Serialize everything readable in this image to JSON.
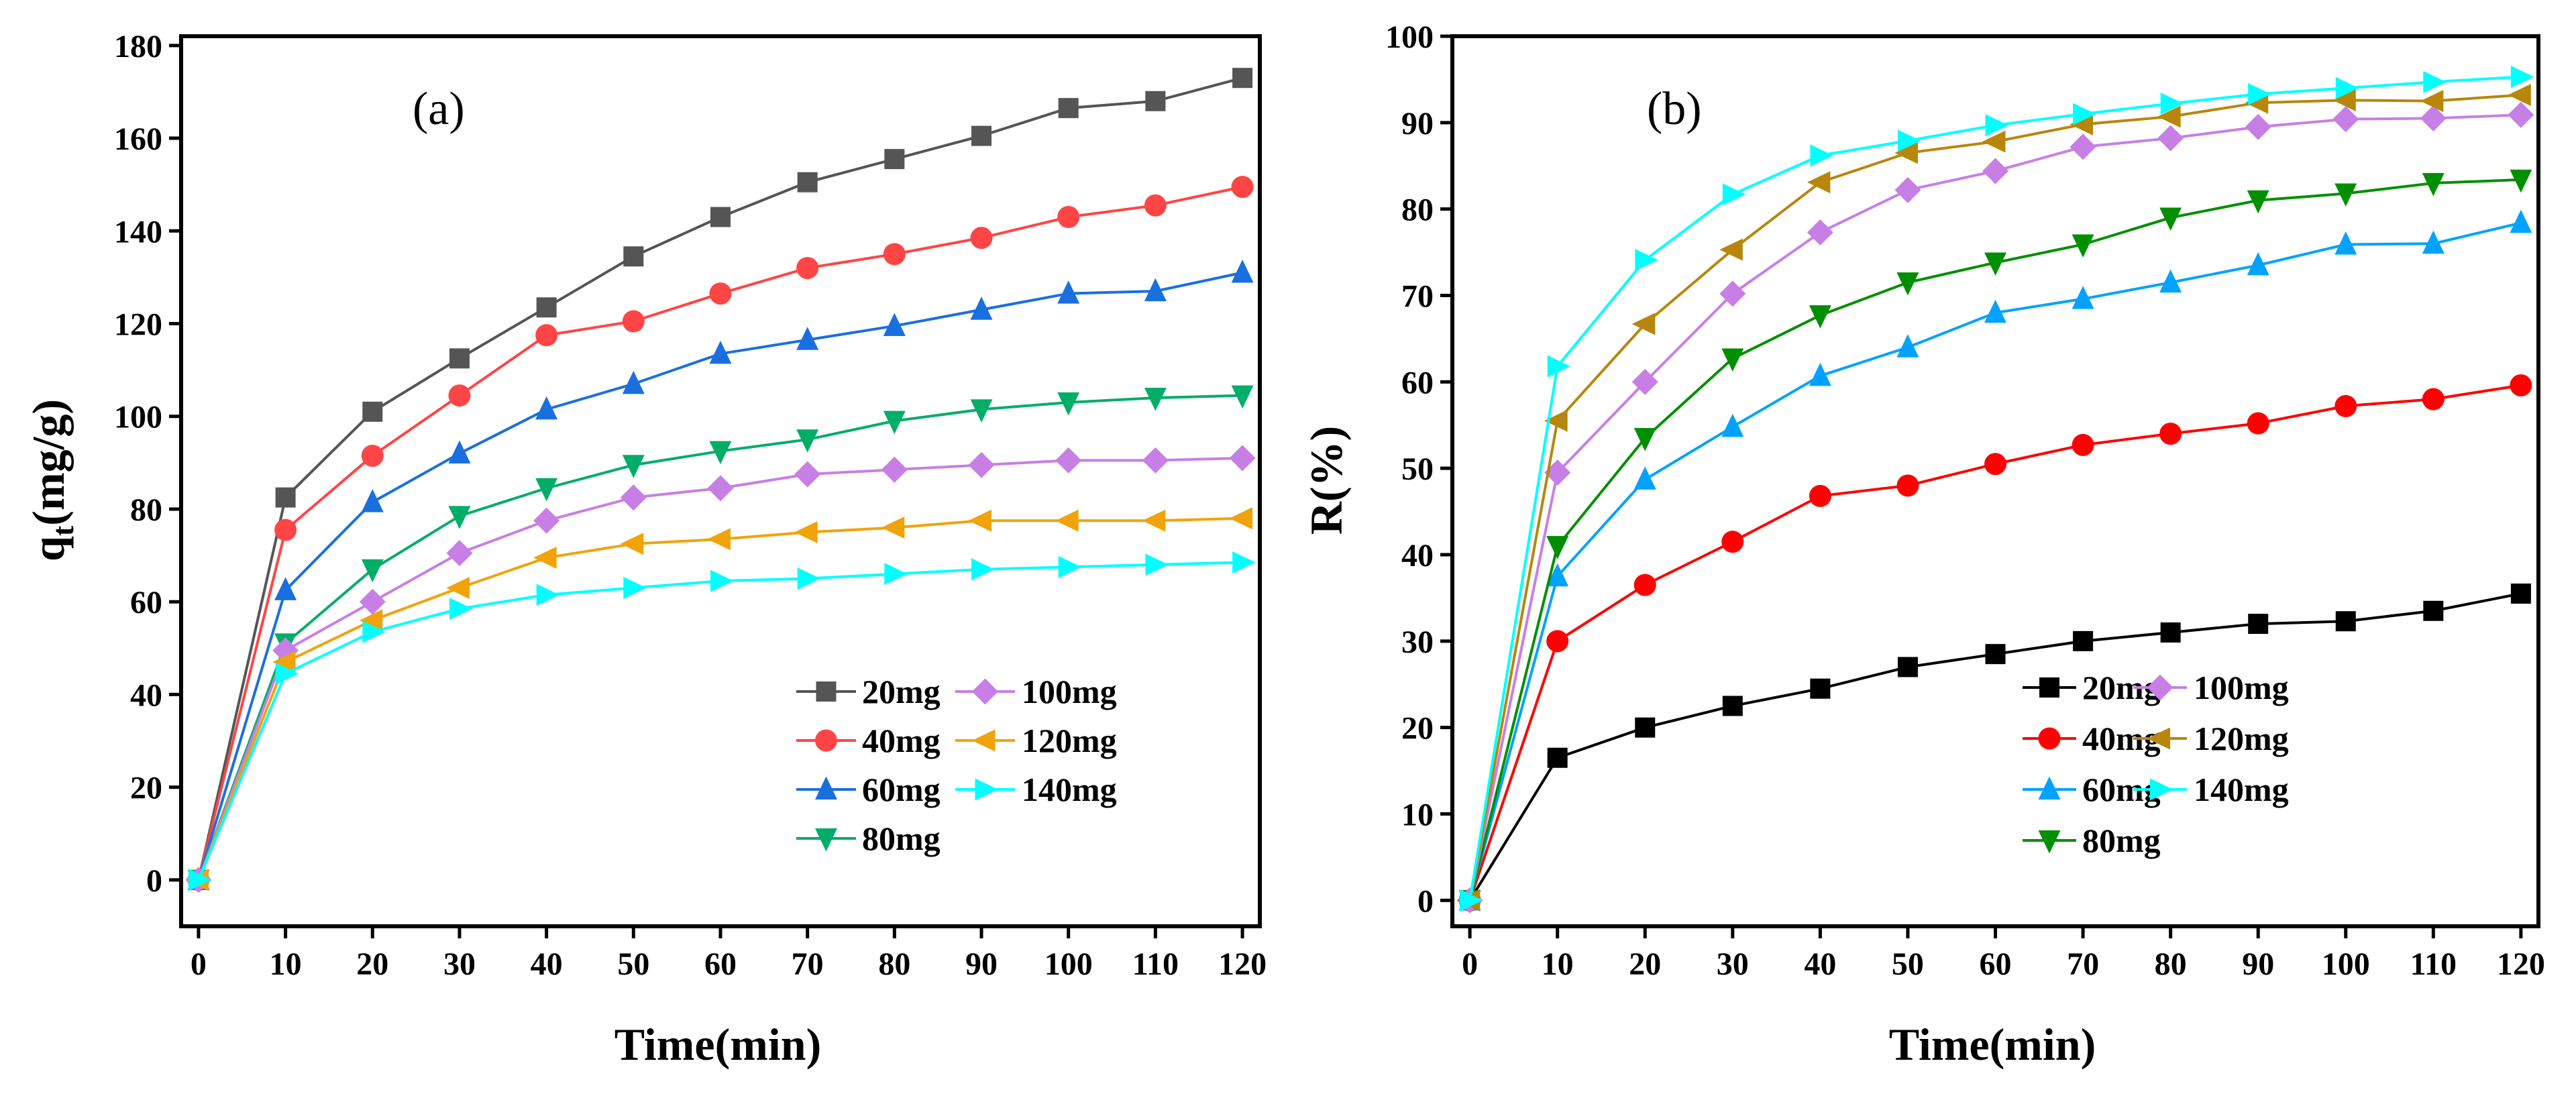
{
  "chart_data": [
    {
      "type": "line",
      "title": "(a)",
      "xlabel": "Time(min)",
      "ylabel_main": "q",
      "ylabel_sub": "t",
      "ylabel_rest": "(mg/g)",
      "xlim": [
        -2,
        122
      ],
      "ylim": [
        -10,
        182
      ],
      "xticks": [
        0,
        10,
        20,
        30,
        40,
        50,
        60,
        70,
        80,
        90,
        100,
        110,
        120
      ],
      "yticks": [
        0,
        20,
        40,
        60,
        80,
        100,
        120,
        140,
        160,
        180
      ],
      "grid": false,
      "legend_placement": "bottom-right",
      "x": [
        0,
        10,
        20,
        30,
        40,
        50,
        60,
        70,
        80,
        90,
        100,
        110,
        120
      ],
      "series": [
        {
          "name": "20mg",
          "color": "#555555",
          "marker": "square",
          "values": [
            0,
            82.5,
            101,
            112.5,
            123.5,
            134.5,
            143,
            150.5,
            155.5,
            160.5,
            166.5,
            168,
            173
          ]
        },
        {
          "name": "40mg",
          "color": "#ff4545",
          "marker": "circle",
          "values": [
            0,
            75.5,
            91.5,
            104.5,
            117.5,
            120.5,
            126.5,
            132,
            135,
            138.5,
            143,
            145.5,
            149.5
          ]
        },
        {
          "name": "60mg",
          "color": "#1a6fdf",
          "marker": "triangle-up",
          "values": [
            0,
            62.5,
            81.5,
            92,
            101.5,
            107,
            113.5,
            116.5,
            119.5,
            123,
            126.5,
            127,
            131
          ]
        },
        {
          "name": "80mg",
          "color": "#00ad69",
          "marker": "triangle-down",
          "values": [
            0,
            51,
            67,
            78.5,
            84.5,
            89.5,
            92.5,
            95,
            99,
            101.5,
            103,
            104,
            104.5
          ]
        },
        {
          "name": "100mg",
          "color": "#c77fe6",
          "marker": "diamond",
          "values": [
            0,
            49.5,
            60,
            70.5,
            77.5,
            82.5,
            84.5,
            87.5,
            88.5,
            89.5,
            90.5,
            90.5,
            91
          ]
        },
        {
          "name": "120mg",
          "color": "#f0a30a",
          "marker": "triangle-left",
          "values": [
            0,
            47,
            56,
            63,
            69.5,
            72.5,
            73.5,
            75,
            76,
            77.5,
            77.5,
            77.5,
            78
          ]
        },
        {
          "name": "140mg",
          "color": "#00ffff",
          "marker": "triangle-right",
          "values": [
            0,
            44.5,
            53.5,
            58.5,
            61.5,
            63,
            64.5,
            65,
            66,
            67,
            67.5,
            68,
            68.5
          ]
        }
      ]
    },
    {
      "type": "line",
      "title": "(b)",
      "xlabel": "Time(min)",
      "ylabel_main": "R(%)",
      "ylabel_sub": "",
      "ylabel_rest": "",
      "xlim": [
        -2,
        122
      ],
      "ylim": [
        -3,
        100
      ],
      "xticks": [
        0,
        10,
        20,
        30,
        40,
        50,
        60,
        70,
        80,
        90,
        100,
        110,
        120
      ],
      "yticks": [
        0,
        10,
        20,
        30,
        40,
        50,
        60,
        70,
        80,
        90,
        100
      ],
      "grid": false,
      "legend_placement": "bottom-right",
      "x": [
        0,
        10,
        20,
        30,
        40,
        50,
        60,
        70,
        80,
        90,
        100,
        110,
        120
      ],
      "series": [
        {
          "name": "20mg",
          "color": "#000000",
          "marker": "square",
          "values": [
            0,
            16.5,
            20,
            22.5,
            24.5,
            27,
            28.5,
            30,
            31,
            32,
            32.3,
            33.5,
            35.5
          ]
        },
        {
          "name": "40mg",
          "color": "#ff0000",
          "marker": "circle",
          "values": [
            0,
            30,
            36.5,
            41.5,
            46.8,
            48,
            50.5,
            52.7,
            54,
            55.2,
            57.2,
            58,
            59.6
          ]
        },
        {
          "name": "60mg",
          "color": "#00a2ff",
          "marker": "triangle-up",
          "values": [
            0,
            37.5,
            48.7,
            54.8,
            60.7,
            64,
            68,
            69.6,
            71.5,
            73.5,
            75.9,
            76,
            78.4
          ]
        },
        {
          "name": "80mg",
          "color": "#008f00",
          "marker": "triangle-down",
          "values": [
            0,
            41,
            53.5,
            62.7,
            67.7,
            71.5,
            73.8,
            75.9,
            79,
            81,
            81.8,
            83,
            83.4
          ]
        },
        {
          "name": "100mg",
          "color": "#c77fe6",
          "marker": "diamond",
          "values": [
            0,
            49.5,
            60,
            70.2,
            77.3,
            82.2,
            84.4,
            87.2,
            88.2,
            89.5,
            90.4,
            90.5,
            90.9
          ]
        },
        {
          "name": "120mg",
          "color": "#b8860b",
          "marker": "triangle-left",
          "values": [
            0,
            55.5,
            66.7,
            75.3,
            83.1,
            86.5,
            87.8,
            89.8,
            90.7,
            92.3,
            92.6,
            92.5,
            93.2
          ]
        },
        {
          "name": "140mg",
          "color": "#00ffff",
          "marker": "triangle-right",
          "values": [
            0,
            61.8,
            74.1,
            81.7,
            86.2,
            87.9,
            89.7,
            91,
            92.2,
            93.3,
            94,
            94.7,
            95.3
          ]
        }
      ]
    }
  ]
}
